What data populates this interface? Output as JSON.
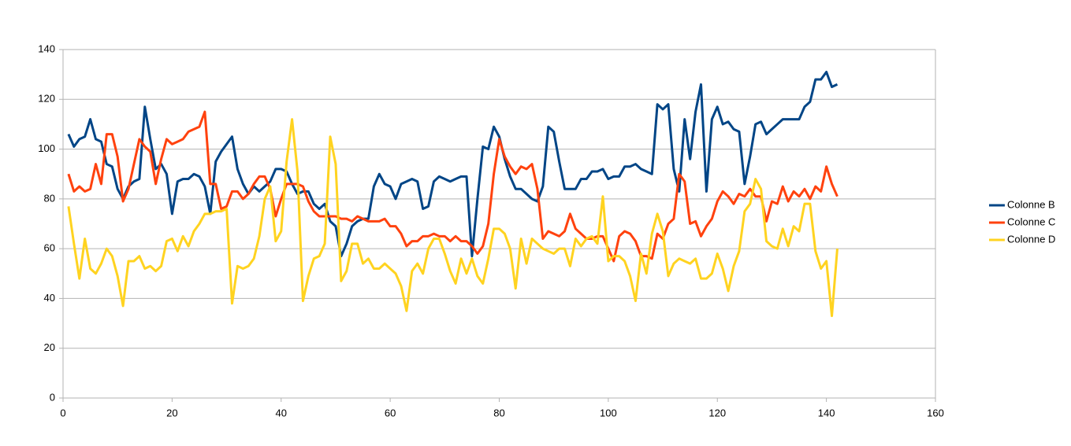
{
  "chart_data": {
    "type": "line",
    "x": [
      1,
      2,
      3,
      4,
      5,
      6,
      7,
      8,
      9,
      10,
      11,
      12,
      13,
      14,
      15,
      16,
      17,
      18,
      19,
      20,
      21,
      22,
      23,
      24,
      25,
      26,
      27,
      28,
      29,
      30,
      31,
      32,
      33,
      34,
      35,
      36,
      37,
      38,
      39,
      40,
      41,
      42,
      43,
      44,
      45,
      46,
      47,
      48,
      49,
      50,
      51,
      52,
      53,
      54,
      55,
      56,
      57,
      58,
      59,
      60,
      61,
      62,
      63,
      64,
      65,
      66,
      67,
      68,
      69,
      70,
      71,
      72,
      73,
      74,
      75,
      76,
      77,
      78,
      79,
      80,
      81,
      82,
      83,
      84,
      85,
      86,
      87,
      88,
      89,
      90,
      91,
      92,
      93,
      94,
      95,
      96,
      97,
      98,
      99,
      100,
      101,
      102,
      103,
      104,
      105,
      106,
      107,
      108,
      109,
      110,
      111,
      112,
      113,
      114,
      115,
      116,
      117,
      118,
      119,
      120,
      121,
      122,
      123,
      124,
      125,
      126,
      127,
      128,
      129,
      130,
      131,
      132,
      133,
      134,
      135,
      136,
      137,
      138,
      139,
      140,
      141,
      142
    ],
    "series": [
      {
        "name": "Colonne B",
        "color": "#004586",
        "values": [
          106,
          101,
          104,
          105,
          112,
          104,
          103,
          94,
          93,
          84,
          80,
          85,
          87,
          88,
          117,
          104,
          92,
          94,
          90,
          74,
          87,
          88,
          88,
          90,
          89,
          85,
          74,
          95,
          99,
          102,
          105,
          92,
          86,
          82,
          85,
          83,
          85,
          87,
          92,
          92,
          91,
          86,
          82,
          83,
          83,
          78,
          76,
          78,
          71,
          69,
          57,
          62,
          69,
          71,
          72,
          72,
          85,
          90,
          86,
          85,
          80,
          86,
          87,
          88,
          87,
          76,
          77,
          87,
          89,
          88,
          87,
          88,
          89,
          89,
          57,
          80,
          101,
          100,
          109,
          105,
          96,
          89,
          84,
          84,
          82,
          80,
          79,
          85,
          109,
          107,
          95,
          84,
          84,
          84,
          88,
          88,
          91,
          91,
          92,
          88,
          89,
          89,
          93,
          93,
          94,
          92,
          91,
          90,
          118,
          116,
          118,
          92,
          83,
          112,
          96,
          115,
          126,
          83,
          112,
          117,
          110,
          111,
          108,
          107,
          86,
          97,
          110,
          111,
          106,
          108,
          110,
          112,
          112,
          112,
          112,
          117,
          119,
          128,
          128,
          131,
          125,
          126
        ]
      },
      {
        "name": "Colonne C",
        "color": "#ff420e",
        "values": [
          90,
          83,
          85,
          83,
          84,
          94,
          86,
          106,
          106,
          97,
          79,
          84,
          94,
          104,
          101,
          99,
          86,
          96,
          104,
          102,
          103,
          104,
          107,
          108,
          109,
          115,
          86,
          86,
          76,
          77,
          83,
          83,
          80,
          82,
          86,
          89,
          89,
          84,
          73,
          80,
          86,
          86,
          86,
          85,
          79,
          75,
          73,
          73,
          73,
          73,
          72,
          72,
          71,
          73,
          72,
          71,
          71,
          71,
          72,
          69,
          69,
          66,
          61,
          63,
          63,
          65,
          65,
          66,
          65,
          65,
          63,
          65,
          63,
          63,
          61,
          58,
          61,
          70,
          90,
          104,
          97,
          93,
          90,
          93,
          92,
          94,
          84,
          64,
          67,
          66,
          65,
          67,
          74,
          68,
          66,
          64,
          64,
          65,
          65,
          60,
          55,
          65,
          67,
          66,
          63,
          57,
          57,
          56,
          66,
          64,
          70,
          72,
          90,
          87,
          70,
          71,
          65,
          69,
          72,
          79,
          83,
          81,
          78,
          82,
          81,
          84,
          81,
          81,
          71,
          79,
          78,
          85,
          79,
          83,
          81,
          84,
          80,
          85,
          83,
          93,
          86,
          81
        ]
      },
      {
        "name": "Colonne D",
        "color": "#ffd320",
        "values": [
          77,
          62,
          48,
          64,
          52,
          50,
          54,
          60,
          57,
          49,
          37,
          55,
          55,
          57,
          52,
          53,
          51,
          53,
          63,
          64,
          59,
          65,
          61,
          67,
          70,
          74,
          74,
          75,
          75,
          76,
          38,
          53,
          52,
          53,
          56,
          65,
          80,
          85,
          63,
          67,
          95,
          112,
          91,
          39,
          49,
          56,
          57,
          62,
          105,
          94,
          47,
          51,
          62,
          62,
          54,
          56,
          52,
          52,
          54,
          52,
          50,
          45,
          35,
          51,
          54,
          50,
          60,
          64,
          64,
          58,
          51,
          46,
          56,
          50,
          56,
          49,
          46,
          56,
          68,
          68,
          66,
          60,
          44,
          64,
          54,
          64,
          62,
          60,
          59,
          58,
          60,
          60,
          53,
          64,
          61,
          64,
          65,
          62,
          81,
          55,
          57,
          57,
          55,
          49,
          39,
          58,
          50,
          66,
          74,
          67,
          49,
          54,
          56,
          55,
          54,
          56,
          48,
          48,
          50,
          58,
          52,
          43,
          53,
          59,
          75,
          78,
          88,
          84,
          63,
          61,
          60,
          68,
          61,
          69,
          67,
          78,
          78,
          59,
          52,
          55,
          33,
          60
        ]
      }
    ],
    "xlim": [
      0,
      160
    ],
    "xticks": [
      0,
      20,
      40,
      60,
      80,
      100,
      120,
      140,
      160
    ],
    "ylim": [
      0,
      140
    ],
    "yticks": [
      0,
      20,
      40,
      60,
      80,
      100,
      120,
      140
    ],
    "grid": true,
    "legend": "right"
  }
}
